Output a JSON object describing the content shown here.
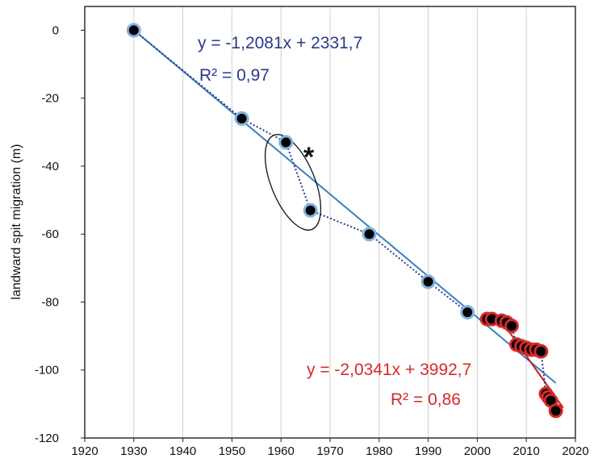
{
  "chart_data": {
    "type": "scatter",
    "ylabel": "landward spit migration (m)",
    "xlabel": "",
    "xlim": [
      1920,
      2020
    ],
    "ylim": [
      -120,
      7
    ],
    "x_ticks": [
      1920,
      1930,
      1940,
      1950,
      1960,
      1970,
      1980,
      1990,
      2000,
      2010,
      2020
    ],
    "y_ticks": [
      0,
      -20,
      -40,
      -60,
      -80,
      -100,
      -120
    ],
    "grid": "vertical",
    "series": [
      {
        "style": "historical",
        "marker_fill": "#000000",
        "marker_edge": "#7fb3e0",
        "connector": "dotted",
        "points": [
          {
            "x": 1930,
            "y": 0
          },
          {
            "x": 1952,
            "y": -26
          },
          {
            "x": 1961,
            "y": -33
          },
          {
            "x": 1966,
            "y": -53
          },
          {
            "x": 1978,
            "y": -60
          },
          {
            "x": 1990,
            "y": -74
          },
          {
            "x": 1998,
            "y": -83
          }
        ]
      },
      {
        "style": "recent",
        "marker_fill": "#000000",
        "marker_edge": "#d42a2a",
        "connector": "dotted",
        "points": [
          {
            "x": 2002,
            "y": -85
          },
          {
            "x": 2003,
            "y": -85
          },
          {
            "x": 2005,
            "y": -85.5
          },
          {
            "x": 2006,
            "y": -86
          },
          {
            "x": 2007,
            "y": -87
          },
          {
            "x": 2008,
            "y": -92.5
          },
          {
            "x": 2009,
            "y": -93
          },
          {
            "x": 2010,
            "y": -93.5
          },
          {
            "x": 2011,
            "y": -94
          },
          {
            "x": 2012,
            "y": -94
          },
          {
            "x": 2013,
            "y": -94.5
          },
          {
            "x": 2014,
            "y": -107
          },
          {
            "x": 2014.5,
            "y": -108
          },
          {
            "x": 2015,
            "y": -109
          },
          {
            "x": 2016,
            "y": -112
          }
        ]
      }
    ],
    "trendlines": [
      {
        "slope": -1.2081,
        "intercept": 2331.7,
        "x_range": [
          1930,
          2016
        ],
        "color": "#3a80c0",
        "equation": "y = -1,2081x + 2331,7",
        "r2": "R² = 0,97"
      },
      {
        "slope": -2.0341,
        "intercept": 3992.7,
        "x_range": [
          2006.5,
          2017.5
        ],
        "color": "#c82020",
        "equation": "y = -2,0341x + 3992,7",
        "r2": "R² = 0,86"
      }
    ],
    "annotations": [
      {
        "text": "*",
        "marks": "ellipse around 1961 and 1966 points"
      }
    ],
    "colors": {
      "trend_blue": "#3a80c0",
      "trend_red": "#c82020",
      "eq_blue": "#2b3a8c",
      "eq_red": "#d42a2a",
      "grid": "#d0d0d0"
    }
  }
}
